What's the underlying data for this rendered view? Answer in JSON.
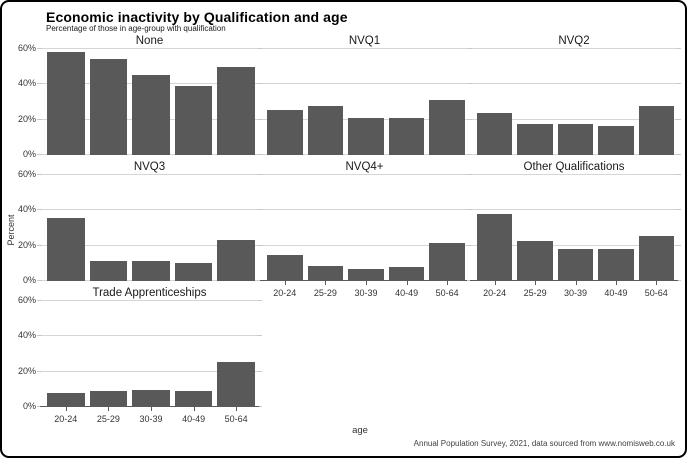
{
  "page": {
    "title": "Economic inactivity by Qualification and age",
    "subtitle": "Percentage of those in age-group with qualification",
    "caption": "Annual Population Survey, 2021, data sourced from www.nomisweb.co.uk"
  },
  "chart_data": {
    "type": "bar",
    "title": "Economic inactivity by Qualification and age",
    "subtitle": "Percentage of those in age-group with qualification",
    "xlabel": "age",
    "ylabel": "Percent",
    "caption": "Annual Population Survey, 2021, data sourced from www.nomisweb.co.uk",
    "categories": [
      "20-24",
      "25-29",
      "30-39",
      "40-49",
      "50-64"
    ],
    "ylim": [
      0,
      60
    ],
    "yticks": [
      {
        "v": 0,
        "label": "0%"
      },
      {
        "v": 20,
        "label": "20%"
      },
      {
        "v": 40,
        "label": "40%"
      },
      {
        "v": 60,
        "label": "60%"
      }
    ],
    "grid": true,
    "legend": "none",
    "bar_color": "#595959",
    "facet_grid": "3 columns x 3 rows, 7 panels",
    "series": [
      {
        "name": "None",
        "row": 0,
        "col": 0,
        "values": [
          58,
          54,
          45,
          38.5,
          49.5
        ]
      },
      {
        "name": "NVQ1",
        "row": 0,
        "col": 1,
        "values": [
          25.5,
          27.5,
          21,
          20.5,
          31
        ]
      },
      {
        "name": "NVQ2",
        "row": 0,
        "col": 2,
        "values": [
          23.5,
          17.5,
          17.5,
          16.5,
          27.5
        ]
      },
      {
        "name": "NVQ3",
        "row": 1,
        "col": 0,
        "values": [
          35.5,
          11,
          11.5,
          10,
          23
        ]
      },
      {
        "name": "NVQ4+",
        "row": 1,
        "col": 1,
        "values": [
          14.5,
          8.5,
          7,
          8,
          21.5
        ]
      },
      {
        "name": "Other Qualifications",
        "row": 1,
        "col": 2,
        "values": [
          37.5,
          22.5,
          18,
          18,
          25.5
        ]
      },
      {
        "name": "Trade Apprenticeships",
        "row": 2,
        "col": 0,
        "values": [
          8,
          9,
          9.5,
          9,
          25.5
        ]
      }
    ]
  }
}
